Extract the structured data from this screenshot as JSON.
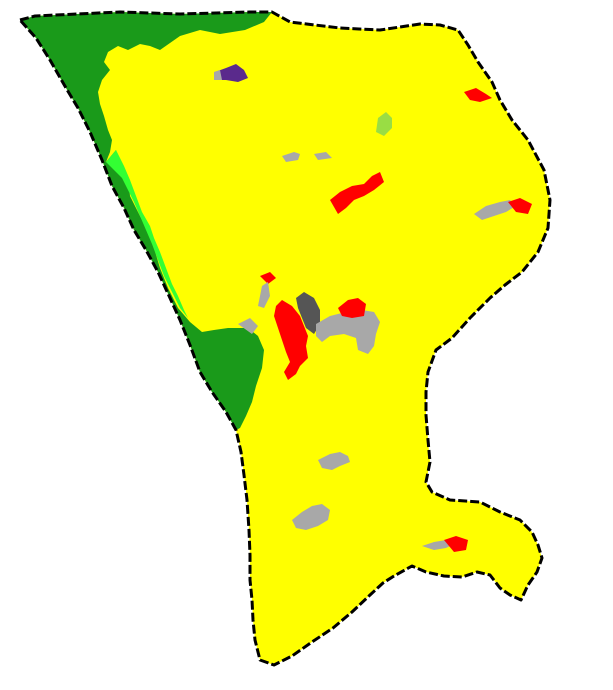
{
  "map": {
    "background": "#ffffff",
    "boundary": {
      "color": "#000000",
      "style": "dashed"
    },
    "land_cover_colors": {
      "agricultural": "#ffff00",
      "forest": "#1a9a1a",
      "grassland": "#33ff33",
      "urban": "#ff0000",
      "industrial_or_barren": "#a8a8a8",
      "dark_built": "#555555",
      "water_body": "#5a2a8c",
      "meadow_patch": "#99dd44"
    },
    "legend": []
  }
}
